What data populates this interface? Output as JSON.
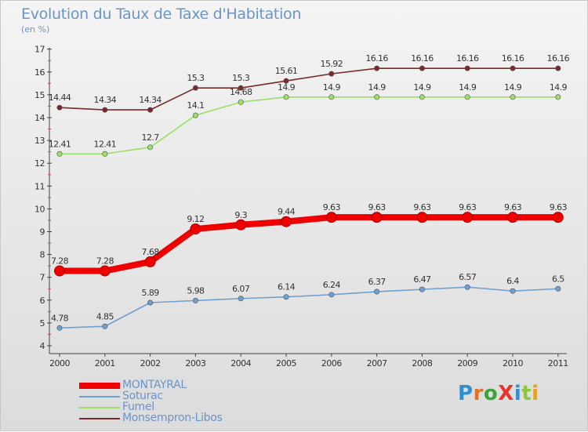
{
  "title": "Evolution du Taux de Taxe d'Habitation",
  "unit": "(en %)",
  "brand": {
    "text": "ProXiti",
    "letter_colors": [
      "#2f8fd0",
      "#e96f24",
      "#3aa43a",
      "#e8352d",
      "#2f8fd0",
      "#8cc63f",
      "#e8a020"
    ]
  },
  "chart_data": {
    "type": "line",
    "categories": [
      "2000",
      "2001",
      "2002",
      "2003",
      "2004",
      "2005",
      "2006",
      "2007",
      "2008",
      "2009",
      "2010",
      "2011"
    ],
    "ylim": [
      4,
      17
    ],
    "yticks": [
      4,
      5,
      6,
      7,
      8,
      9,
      10,
      11,
      12,
      13,
      14,
      15,
      16,
      17
    ],
    "grid": false,
    "legend_position": "bottom-left",
    "series": [
      {
        "name": "MONTAYRAL",
        "color": "#ee0000",
        "weight": "thick",
        "values": [
          7.28,
          7.28,
          7.68,
          9.12,
          9.3,
          9.44,
          9.63,
          9.63,
          9.63,
          9.63,
          9.63,
          9.63
        ],
        "labels": [
          "7.28",
          "7.28",
          "7.68",
          "9.12",
          "9.3",
          "9.44",
          "9.63",
          "9.63",
          "9.63",
          "9.63",
          "9.63",
          "9.63"
        ]
      },
      {
        "name": "Soturac",
        "color": "#6fa0cf",
        "weight": "thin",
        "values": [
          4.78,
          4.85,
          5.89,
          5.98,
          6.07,
          6.14,
          6.24,
          6.37,
          6.47,
          6.57,
          6.4,
          6.5
        ],
        "labels": [
          "4.78",
          "4.85",
          "5.89",
          "5.98",
          "6.07",
          "6.14",
          "6.24",
          "6.37",
          "6.47",
          "6.57",
          "6.4",
          "6.5"
        ]
      },
      {
        "name": "Fumel",
        "color": "#99e066",
        "weight": "thin",
        "values": [
          12.41,
          12.41,
          12.7,
          14.1,
          14.68,
          14.9,
          14.9,
          14.9,
          14.9,
          14.9,
          14.9,
          14.9
        ],
        "labels": [
          "12.41",
          "12.41",
          "12.7",
          "14.1",
          "14.68",
          "14.9",
          "14.9",
          "14.9",
          "14.9",
          "14.9",
          "14.9",
          "14.9"
        ]
      },
      {
        "name": "Monsempron-Libos",
        "color": "#7a2a2a",
        "weight": "thin",
        "values": [
          14.44,
          14.34,
          14.34,
          15.3,
          15.3,
          15.61,
          15.92,
          16.16,
          16.16,
          16.16,
          16.16,
          16.16
        ],
        "labels": [
          "14.44",
          "14.34",
          "14.34",
          "15.3",
          "15.3",
          "15.61",
          "15.92",
          "16.16",
          "16.16",
          "16.16",
          "16.16",
          "16.16"
        ]
      }
    ]
  }
}
